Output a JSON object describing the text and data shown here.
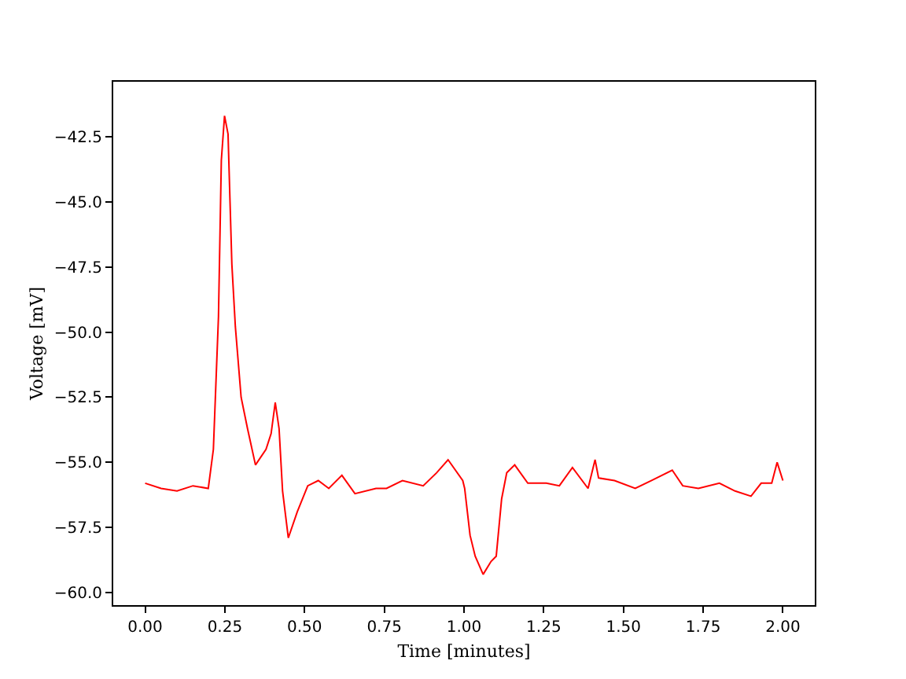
{
  "chart_data": {
    "type": "line",
    "xlabel": "Time [minutes]",
    "ylabel": "Voltage [mV]",
    "x": [
      0,
      0.05,
      0.1,
      0.15,
      0.198,
      0.214,
      0.23,
      0.239,
      0.249,
      0.26,
      0.272,
      0.283,
      0.301,
      0.321,
      0.346,
      0.379,
      0.395,
      0.408,
      0.42,
      0.431,
      0.449,
      0.477,
      0.51,
      0.543,
      0.576,
      0.617,
      0.658,
      0.724,
      0.757,
      0.807,
      0.872,
      0.914,
      0.95,
      0.996,
      1.002,
      1.019,
      1.035,
      1.06,
      1.085,
      1.101,
      1.118,
      1.134,
      1.159,
      1.2,
      1.258,
      1.299,
      1.34,
      1.389,
      1.411,
      1.422,
      1.472,
      1.537,
      1.587,
      1.653,
      1.686,
      1.735,
      1.801,
      1.85,
      1.9,
      1.932,
      1.965,
      1.982,
      2.0
    ],
    "series": [
      {
        "color": "#ff0000",
        "values": [
          -55.8,
          -56.0,
          -56.1,
          -55.9,
          -56.0,
          -54.5,
          -49.4,
          -43.4,
          -41.7,
          -42.4,
          -47.4,
          -49.8,
          -52.5,
          -53.7,
          -55.1,
          -54.5,
          -53.9,
          -52.7,
          -53.7,
          -56.1,
          -57.9,
          -56.9,
          -55.9,
          -55.7,
          -56.0,
          -55.5,
          -56.2,
          -56.0,
          -56.0,
          -55.7,
          -55.9,
          -55.4,
          -54.9,
          -55.7,
          -56.0,
          -57.8,
          -58.6,
          -59.3,
          -58.8,
          -58.6,
          -56.4,
          -55.4,
          -55.1,
          -55.8,
          -55.8,
          -55.9,
          -55.2,
          -56.0,
          -54.9,
          -55.6,
          -55.7,
          -56.0,
          -55.7,
          -55.3,
          -55.9,
          -56.0,
          -55.8,
          -56.1,
          -56.3,
          -55.8,
          -55.8,
          -55.0,
          -55.7
        ]
      }
    ],
    "xlim": [
      -0.1,
      2.1
    ],
    "ylim": [
      -60.48,
      -40.39
    ],
    "xticks": [
      {
        "value": 0,
        "label": "0.00"
      },
      {
        "value": 0.25,
        "label": "0.25"
      },
      {
        "value": 0.5,
        "label": "0.50"
      },
      {
        "value": 0.75,
        "label": "0.75"
      },
      {
        "value": 1,
        "label": "1.00"
      },
      {
        "value": 1.25,
        "label": "1.25"
      },
      {
        "value": 1.5,
        "label": "1.50"
      },
      {
        "value": 1.75,
        "label": "1.75"
      },
      {
        "value": 2,
        "label": "2.00"
      }
    ],
    "yticks": [
      {
        "value": -60,
        "label": "−60.0"
      },
      {
        "value": -57.5,
        "label": "−57.5"
      },
      {
        "value": -55,
        "label": "−55.0"
      },
      {
        "value": -52.5,
        "label": "−52.5"
      },
      {
        "value": -50,
        "label": "−50.0"
      },
      {
        "value": -47.5,
        "label": "−47.5"
      },
      {
        "value": -45,
        "label": "−45.0"
      },
      {
        "value": -42.5,
        "label": "−42.5"
      }
    ],
    "marker": "none",
    "line_style": "solid"
  }
}
